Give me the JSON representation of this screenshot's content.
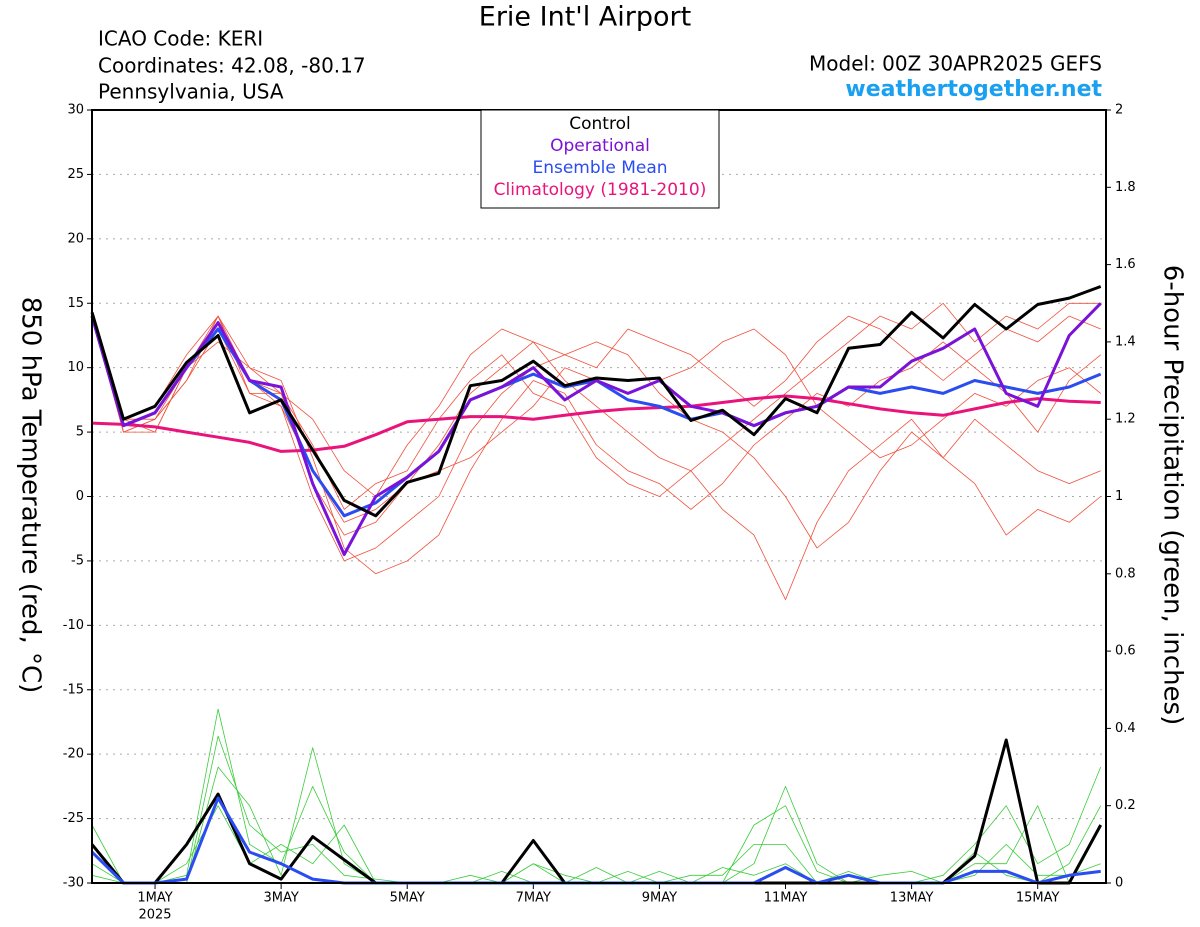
{
  "chart_data": {
    "type": "line",
    "title": "Erie Int'l Airport",
    "info_lines": [
      "ICAO Code: KERI",
      "Coordinates: 42.08, -80.17",
      "Pennsylvania, USA"
    ],
    "model": "Model: 00Z 30APR2025 GEFS",
    "site": "weathertogether.net",
    "ylabel": "850 hPa Temperature (red, °C)",
    "y2label": "6-hour Precipitation (green, inches)",
    "xlim": [
      0,
      386
    ],
    "xticks": [
      {
        "value": 24,
        "label": "1MAY"
      },
      {
        "value": 72,
        "label": "3MAY"
      },
      {
        "value": 120,
        "label": "5MAY"
      },
      {
        "value": 168,
        "label": "7MAY"
      },
      {
        "value": 216,
        "label": "9MAY"
      },
      {
        "value": 264,
        "label": "11MAY"
      },
      {
        "value": 312,
        "label": "13MAY"
      },
      {
        "value": 360,
        "label": "15MAY"
      }
    ],
    "x_year_label": "2025",
    "ylim": [
      -30,
      30
    ],
    "yticks": [
      -30,
      -25,
      -20,
      -15,
      -10,
      -5,
      0,
      5,
      10,
      15,
      20,
      25,
      30
    ],
    "y2lim": [
      0,
      2
    ],
    "y2ticks": [
      0,
      0.2,
      0.4,
      0.6,
      0.8,
      1,
      1.2,
      1.4,
      1.6,
      1.8,
      2
    ],
    "grid": true,
    "legend": "top",
    "x": [
      0,
      12,
      24,
      36,
      48,
      60,
      72,
      84,
      96,
      108,
      120,
      132,
      144,
      156,
      168,
      180,
      192,
      204,
      216,
      228,
      240,
      252,
      264,
      276,
      288,
      300,
      312,
      324,
      336,
      348,
      360,
      372,
      384
    ],
    "temp_members": {
      "color": "#f0503c",
      "values": [
        [
          14,
          5,
          6,
          9,
          14,
          9,
          8,
          1,
          -3,
          -2,
          1,
          4,
          8,
          10,
          12,
          9,
          7,
          5,
          3,
          2,
          4,
          6,
          8,
          10,
          12,
          14,
          13,
          15,
          12,
          14,
          13,
          15,
          15
        ],
        [
          14,
          6,
          5,
          10,
          13,
          8,
          7,
          0,
          -5,
          -4,
          -2,
          0,
          5,
          8,
          10,
          11,
          12,
          11,
          8,
          6,
          5,
          3,
          0,
          -4,
          -2,
          2,
          5,
          3,
          6,
          4,
          2,
          1,
          2
        ],
        [
          14,
          6,
          7,
          11,
          14,
          10,
          9,
          3,
          -4,
          -6,
          -5,
          -3,
          2,
          6,
          9,
          8,
          4,
          2,
          1,
          -1,
          1,
          4,
          6,
          8,
          7,
          9,
          10,
          12,
          10,
          8,
          5,
          9,
          11
        ],
        [
          14,
          5,
          6,
          10,
          12,
          10,
          8,
          6,
          2,
          0,
          4,
          7,
          11,
          13,
          12,
          11,
          10,
          13,
          12,
          11,
          9,
          7,
          9,
          12,
          14,
          13,
          11,
          9,
          11,
          13,
          12,
          14,
          13
        ],
        [
          14,
          6,
          6,
          9,
          13,
          9,
          7,
          2,
          -2,
          -1,
          1,
          2,
          3,
          5,
          7,
          10,
          9,
          8,
          9,
          10,
          12,
          13,
          11,
          7,
          5,
          3,
          4,
          6,
          8,
          7,
          9,
          10,
          8
        ],
        [
          14,
          5,
          5,
          10,
          14,
          8,
          8,
          4,
          -1,
          1,
          2,
          6,
          9,
          11,
          8,
          7,
          3,
          1,
          0,
          2,
          -1,
          -3,
          -8,
          -2,
          2,
          4,
          6,
          3,
          1,
          -3,
          -1,
          -2,
          0
        ]
      ]
    },
    "precip_members": {
      "color": "#3ccc3c",
      "values": [
        [
          0.15,
          0,
          0,
          0.02,
          0.45,
          0.1,
          0.05,
          0.25,
          0.08,
          0,
          0,
          0,
          0,
          0,
          0.05,
          0.02,
          0,
          0,
          0.03,
          0,
          0,
          0.05,
          0.25,
          0.05,
          0,
          0,
          0,
          0.02,
          0.1,
          0.2,
          0.05,
          0.1,
          0.3
        ],
        [
          0.05,
          0,
          0,
          0,
          0.3,
          0.2,
          0.02,
          0.35,
          0.05,
          0,
          0,
          0,
          0,
          0.03,
          0,
          0,
          0.04,
          0,
          0,
          0.02,
          0.02,
          0.1,
          0.1,
          0,
          0.03,
          0,
          0,
          0,
          0.05,
          0.05,
          0.2,
          0,
          0.15
        ],
        [
          0.1,
          0,
          0,
          0.05,
          0.2,
          0.05,
          0.1,
          0.05,
          0.15,
          0,
          0,
          0,
          0.02,
          0,
          0.05,
          0,
          0,
          0.03,
          0,
          0,
          0.04,
          0.02,
          0.05,
          0,
          0,
          0.02,
          0.03,
          0,
          0.08,
          0.02,
          0,
          0.05,
          0.2
        ],
        [
          0.02,
          0,
          0,
          0,
          0.38,
          0.15,
          0.08,
          0.1,
          0.02,
          0.01,
          0,
          0,
          0,
          0,
          0,
          0,
          0,
          0,
          0,
          0,
          0,
          0.15,
          0.2,
          0.03,
          0,
          0,
          0,
          0,
          0.02,
          0.1,
          0.02,
          0.02,
          0.05
        ]
      ]
    },
    "precip_series": [
      {
        "color": "#000000",
        "values": [
          0.1,
          0,
          0,
          0.1,
          0.23,
          0.05,
          0.01,
          0.12,
          0.06,
          0,
          0,
          0,
          0,
          0,
          0.11,
          0,
          0,
          0,
          0,
          0,
          0,
          0,
          0,
          0,
          0,
          0,
          0,
          0,
          0.07,
          0.37,
          0,
          0,
          0.15
        ]
      },
      {
        "color": "#2a4cf0",
        "values": [
          0.08,
          0,
          0,
          0.01,
          0.22,
          0.08,
          0.05,
          0.01,
          0,
          0,
          0,
          0,
          0,
          0,
          0,
          0,
          0,
          0,
          0,
          0,
          0,
          0,
          0.04,
          0,
          0.02,
          0,
          0,
          0,
          0.03,
          0.03,
          0,
          0.02,
          0.03
        ]
      }
    ],
    "series": [
      {
        "name": "Control",
        "color": "#000000",
        "values": [
          14.3,
          6,
          7,
          10.4,
          12.5,
          6.5,
          7.5,
          3.6,
          -0.3,
          -1.5,
          1.1,
          1.8,
          8.6,
          9,
          10.5,
          8.6,
          9.2,
          9,
          9.2,
          5.9,
          6.7,
          4.8,
          7.6,
          6.5,
          11.5,
          11.8,
          14.3,
          12.3,
          14.9,
          13,
          14.9,
          15.4,
          16.3
        ]
      },
      {
        "name": "Operational",
        "color": "#7a12d8",
        "values": [
          14,
          5.5,
          6.5,
          10,
          13.5,
          9,
          8.5,
          1,
          -4.5,
          0,
          1.5,
          3.5,
          7.5,
          8.5,
          10,
          7.5,
          9,
          8,
          9,
          7,
          6.5,
          5.5,
          6.5,
          7,
          8.5,
          8.5,
          10.5,
          11.5,
          13,
          8,
          7,
          12.5,
          15
        ]
      },
      {
        "name": "Ensemble Mean",
        "color": "#2a4cf0",
        "values": [
          14,
          5.5,
          6.5,
          10,
          13,
          9,
          7.5,
          2,
          -1.5,
          -0.5,
          1.5,
          3.5,
          7.5,
          8.5,
          9.5,
          8.5,
          9,
          7.5,
          7,
          6,
          6.5,
          5.5,
          6.5,
          7,
          8.5,
          8,
          8.5,
          8,
          9,
          8.5,
          8,
          8.5,
          9.5
        ]
      },
      {
        "name": "Climatology (1981-2010)",
        "color": "#e8147c",
        "values": [
          5.7,
          5.6,
          5.4,
          5,
          4.6,
          4.2,
          3.5,
          3.6,
          3.9,
          4.8,
          5.8,
          6,
          6.2,
          6.2,
          6,
          6.3,
          6.6,
          6.8,
          6.9,
          7,
          7.3,
          7.6,
          7.8,
          7.6,
          7.2,
          6.8,
          6.5,
          6.3,
          6.8,
          7.3,
          7.6,
          7.4,
          7.3
        ]
      }
    ]
  }
}
